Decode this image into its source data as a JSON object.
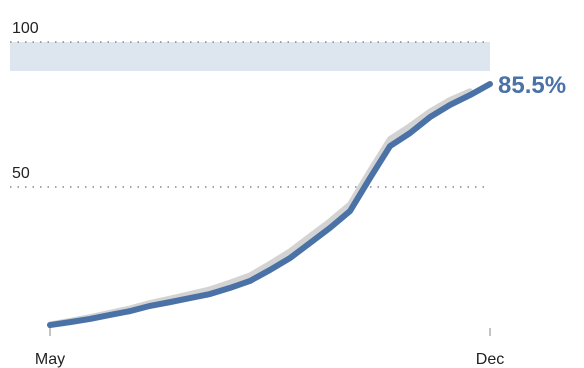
{
  "chart_data": {
    "type": "line",
    "categories": [
      "May",
      null,
      null,
      null,
      null,
      null,
      null,
      null,
      null,
      null,
      null,
      null,
      null,
      null,
      null,
      null,
      null,
      null,
      null,
      null,
      null,
      null,
      "Dec"
    ],
    "series": [
      {
        "color": "#d3d3d3",
        "values": [
          2.6,
          3.8,
          5.1,
          6.6,
          8.1,
          10.0,
          11.5,
          13.1,
          14.7,
          17.0,
          19.5,
          23.5,
          27.8,
          33.0,
          38.2,
          44.0,
          55.5,
          66.5,
          71.0,
          76.0,
          80.0,
          83.0,
          null
        ]
      },
      {
        "color": "#4a72a6",
        "values": [
          2.4,
          3.4,
          4.5,
          5.9,
          7.2,
          9.0,
          10.3,
          11.7,
          13.1,
          15.2,
          17.6,
          21.4,
          25.5,
          30.7,
          35.9,
          41.7,
          53.1,
          64.1,
          68.6,
          74.1,
          78.3,
          81.7,
          85.5
        ],
        "value_labels": [
          null,
          null,
          null,
          null,
          null,
          null,
          null,
          null,
          null,
          null,
          null,
          null,
          null,
          null,
          null,
          null,
          null,
          null,
          null,
          null,
          null,
          null,
          "85.5%"
        ]
      }
    ],
    "ylim": [
      0,
      100
    ],
    "yticks": [
      50,
      100
    ],
    "grid": true,
    "band": [
      90,
      100
    ],
    "band_color": "#dde5ee"
  }
}
